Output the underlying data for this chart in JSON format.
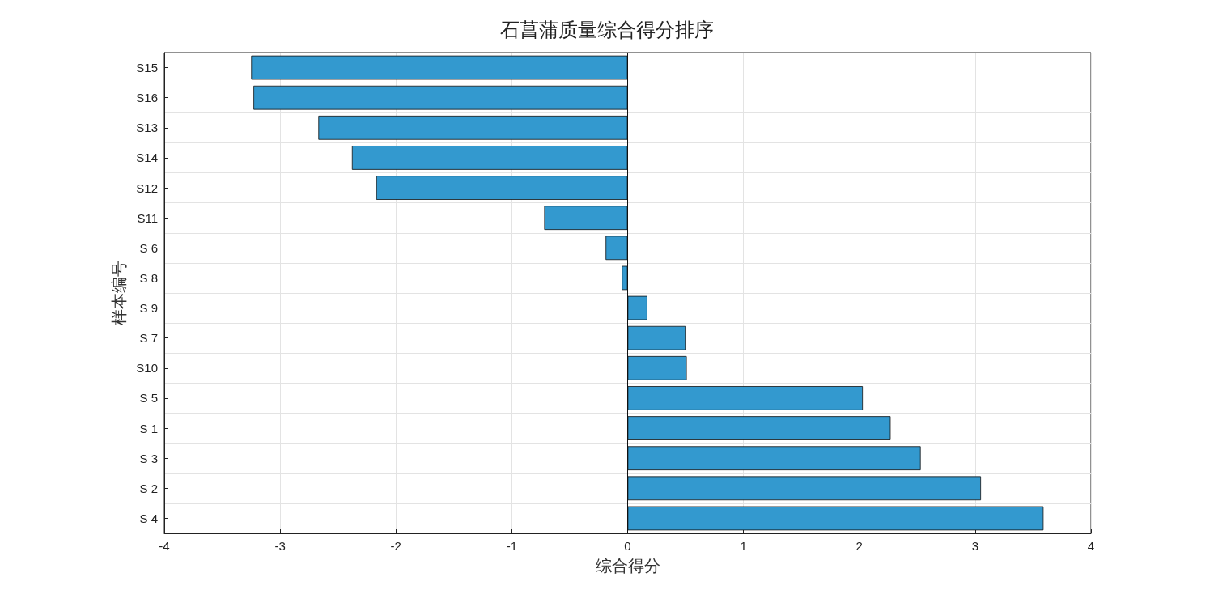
{
  "chart_data": {
    "type": "bar",
    "orientation": "horizontal",
    "title": "石菖蒲质量综合得分排序",
    "xlabel": "综合得分",
    "ylabel": "样本编号",
    "categories": [
      "S15",
      "S16",
      "S13",
      "S14",
      "S12",
      "S11",
      "S 6",
      "S 8",
      "S 9",
      "S 7",
      "S10",
      "S 5",
      "S 1",
      "S 3",
      "S 2",
      "S 4"
    ],
    "values": [
      -3.25,
      -3.23,
      -2.67,
      -2.38,
      -2.17,
      -0.72,
      -0.19,
      -0.05,
      0.17,
      0.5,
      0.51,
      2.03,
      2.27,
      2.53,
      3.05,
      3.59
    ],
    "color": "#3399cf",
    "xlim": [
      -4,
      4
    ],
    "xticks": [
      -4,
      -3,
      -2,
      -1,
      0,
      1,
      2,
      3,
      4
    ],
    "grid": true
  }
}
